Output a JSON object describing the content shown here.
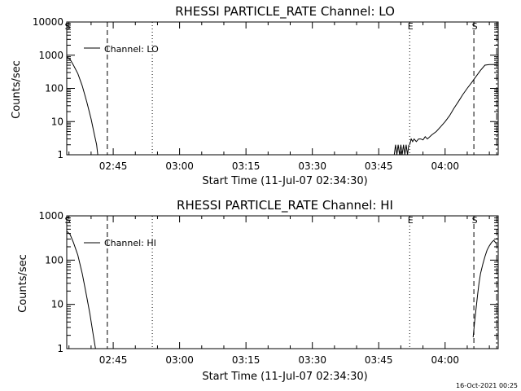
{
  "chart_data": [
    {
      "type": "line",
      "title": "RHESSI PARTICLE_RATE Channel: LO",
      "xlabel": "Start Time (11-Jul-07 02:34:30)",
      "ylabel": "Counts/sec",
      "yscale": "log",
      "ylim": [
        1,
        10000
      ],
      "xlim": [
        "02:34:30",
        "04:12:00"
      ],
      "xticks": [
        "02:45",
        "03:00",
        "03:15",
        "03:30",
        "03:45",
        "04:00"
      ],
      "yticks": [
        "1",
        "10",
        "100",
        "1000",
        "10000"
      ],
      "legend": {
        "label": "Channel: LO",
        "placement": "top-left"
      },
      "markers": [
        {
          "label": "S",
          "time": "02:34:30",
          "style": "none"
        },
        {
          "label": "",
          "time": "02:43:40",
          "style": "dashed"
        },
        {
          "label": "",
          "time": "02:53:50",
          "style": "dotted"
        },
        {
          "label": "E",
          "time": "03:52:00",
          "style": "dotted"
        },
        {
          "label": "S",
          "time": "04:06:30",
          "style": "dashed"
        },
        {
          "label": "",
          "time": "04:11:40",
          "style": "dashdot"
        }
      ],
      "series": [
        {
          "name": "Channel: LO",
          "segments": [
            {
              "x": [
                "02:34:30",
                "02:35:15",
                "02:36:00",
                "02:37:00",
                "02:38:00",
                "02:39:00",
                "02:40:00",
                "02:40:45",
                "02:41:15",
                "02:41:30"
              ],
              "y": [
                900,
                750,
                500,
                280,
                120,
                40,
                12,
                4,
                2,
                1
              ]
            },
            {
              "x": [
                "03:48:30",
                "03:48:48",
                "03:49:06",
                "03:49:24",
                "03:49:42",
                "03:50:00",
                "03:50:18",
                "03:50:36",
                "03:50:54",
                "03:51:12",
                "03:51:30",
                "03:51:48"
              ],
              "y": [
                1,
                2,
                1,
                2,
                1,
                2,
                1,
                2,
                1,
                2,
                1,
                2
              ]
            },
            {
              "x": [
                "03:52:00",
                "03:52:20",
                "03:52:40",
                "03:53:00",
                "03:53:30",
                "03:54:00",
                "03:54:30",
                "03:55:00",
                "03:55:30",
                "03:56:00",
                "03:57:00",
                "03:58:00",
                "03:59:00",
                "04:00:00",
                "04:01:00",
                "04:02:00",
                "04:03:00",
                "04:04:00",
                "04:05:00",
                "04:06:00",
                "04:07:00",
                "04:08:00",
                "04:09:00",
                "04:10:00",
                "04:11:30"
              ],
              "y": [
                2,
                3,
                2.5,
                3,
                2.5,
                3,
                3,
                2.8,
                3.5,
                3,
                4,
                5,
                7,
                10,
                15,
                25,
                40,
                65,
                100,
                150,
                230,
                350,
                500,
                520,
                520
              ]
            }
          ]
        }
      ]
    },
    {
      "type": "line",
      "title": "RHESSI PARTICLE_RATE Channel: HI",
      "xlabel": "Start Time (11-Jul-07 02:34:30)",
      "ylabel": "Counts/sec",
      "yscale": "log",
      "ylim": [
        1,
        1000
      ],
      "xlim": [
        "02:34:30",
        "04:12:00"
      ],
      "xticks": [
        "02:45",
        "03:00",
        "03:15",
        "03:30",
        "03:45",
        "04:00"
      ],
      "yticks": [
        "1",
        "10",
        "100",
        "1000"
      ],
      "legend": {
        "label": "Channel: HI",
        "placement": "top-left"
      },
      "markers": [
        {
          "label": "S",
          "time": "02:34:30",
          "style": "none"
        },
        {
          "label": "",
          "time": "02:43:40",
          "style": "dashed"
        },
        {
          "label": "",
          "time": "02:53:50",
          "style": "dotted"
        },
        {
          "label": "E",
          "time": "03:52:00",
          "style": "dotted"
        },
        {
          "label": "S",
          "time": "04:06:30",
          "style": "dashed"
        },
        {
          "label": "",
          "time": "04:11:40",
          "style": "dashdot"
        }
      ],
      "series": [
        {
          "name": "Channel: HI",
          "segments": [
            {
              "x": [
                "02:34:30",
                "02:35:15",
                "02:36:00",
                "02:37:00",
                "02:38:00",
                "02:39:00",
                "02:39:45",
                "02:40:30",
                "02:41:00"
              ],
              "y": [
                450,
                380,
                250,
                130,
                50,
                15,
                6,
                2,
                1
              ]
            },
            {
              "x": [
                "04:06:20",
                "04:06:40",
                "04:07:00",
                "04:07:20",
                "04:07:40",
                "04:08:00",
                "04:08:30",
                "04:09:00",
                "04:09:30",
                "04:10:00",
                "04:10:30",
                "04:11:00",
                "04:11:30"
              ],
              "y": [
                1.8,
                4,
                8,
                16,
                30,
                50,
                80,
                120,
                170,
                210,
                250,
                280,
                240
              ]
            }
          ]
        }
      ]
    }
  ],
  "footer": {
    "timestamp": "16-Oct-2021 00:25"
  }
}
